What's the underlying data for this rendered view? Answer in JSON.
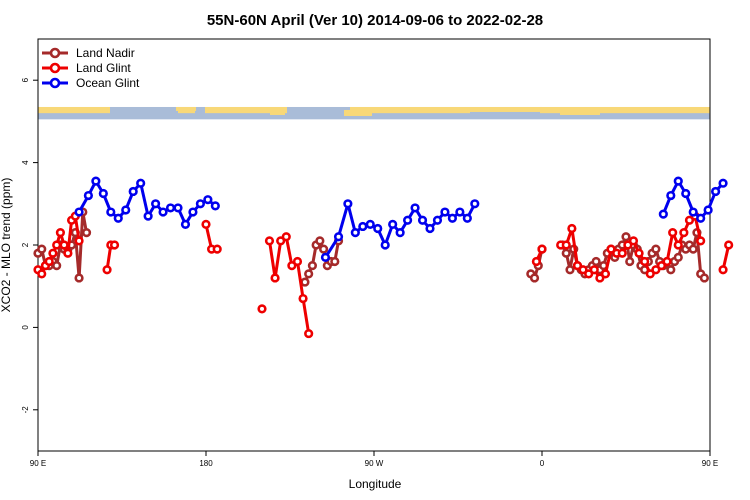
{
  "chart_data": {
    "type": "line",
    "title": "55N-60N April (Ver 10)   2014-09-06 to 2022-02-28",
    "xlabel": "Longitude",
    "ylabel": "XCO2 - MLO trend (ppm)",
    "xlim": [
      90,
      450
    ],
    "ylim": [
      -3,
      7
    ],
    "x_ticks": [
      {
        "value": 90,
        "label": "90 E"
      },
      {
        "value": 180,
        "label": "180"
      },
      {
        "value": 270,
        "label": "90 W"
      },
      {
        "value": 360,
        "label": "0"
      },
      {
        "value": 450,
        "label": "90 E"
      },
      {
        "value": 540,
        "label": "180"
      }
    ],
    "y_ticks": [
      {
        "value": -2,
        "label": "-2"
      },
      {
        "value": 0,
        "label": "0"
      },
      {
        "value": 2,
        "label": "2"
      },
      {
        "value": 4,
        "label": "4"
      },
      {
        "value": 6,
        "label": "6"
      }
    ],
    "legend": {
      "position": "top-left"
    },
    "map_strip": {
      "y_bottom": 5.05,
      "y_top": 5.35,
      "ocean_color": "#a9bcd8",
      "land_color": "#f8d878"
    },
    "series": [
      {
        "name": "Land Nadir",
        "color": "#a52a2a",
        "segments": [
          [
            [
              90,
              1.8
            ],
            [
              92,
              1.9
            ],
            [
              94,
              1.5
            ],
            [
              96,
              1.5
            ],
            [
              98,
              1.6
            ],
            [
              100,
              1.5
            ],
            [
              102,
              2.0
            ],
            [
              104,
              1.9
            ],
            [
              106,
              1.9
            ],
            [
              108,
              2.0
            ],
            [
              110,
              2.3
            ],
            [
              112,
              1.2
            ],
            [
              114,
              2.8
            ],
            [
              116,
              2.3
            ]
          ],
          [
            [
              233,
              1.1
            ],
            [
              235,
              1.3
            ],
            [
              237,
              1.5
            ],
            [
              239,
              2.0
            ],
            [
              241,
              2.1
            ],
            [
              243,
              1.9
            ],
            [
              245,
              1.5
            ],
            [
              247,
              1.6
            ],
            [
              249,
              1.6
            ],
            [
              251,
              2.1
            ]
          ],
          [
            [
              354,
              1.3
            ],
            [
              356,
              1.2
            ],
            [
              358,
              1.5
            ],
            [
              360,
              1.9
            ]
          ],
          [
            [
              371,
              2.0
            ],
            [
              373,
              1.8
            ],
            [
              375,
              1.4
            ],
            [
              377,
              1.9
            ],
            [
              379,
              1.5
            ],
            [
              381,
              1.4
            ],
            [
              383,
              1.3
            ],
            [
              385,
              1.4
            ],
            [
              387,
              1.5
            ],
            [
              389,
              1.6
            ],
            [
              391,
              1.4
            ],
            [
              393,
              1.5
            ],
            [
              395,
              1.8
            ],
            [
              397,
              1.9
            ],
            [
              399,
              1.7
            ],
            [
              401,
              1.9
            ],
            [
              403,
              2.0
            ],
            [
              405,
              2.2
            ],
            [
              407,
              1.6
            ],
            [
              409,
              2.0
            ],
            [
              411,
              1.9
            ],
            [
              413,
              1.5
            ],
            [
              415,
              1.4
            ],
            [
              417,
              1.6
            ],
            [
              419,
              1.8
            ],
            [
              421,
              1.9
            ],
            [
              423,
              1.6
            ],
            [
              425,
              1.5
            ],
            [
              427,
              1.6
            ],
            [
              429,
              1.4
            ],
            [
              431,
              1.6
            ],
            [
              433,
              1.7
            ],
            [
              435,
              2.0
            ],
            [
              437,
              1.9
            ],
            [
              439,
              2.0
            ],
            [
              441,
              1.9
            ],
            [
              443,
              2.3
            ],
            [
              445,
              1.3
            ],
            [
              447,
              1.2
            ]
          ]
        ]
      },
      {
        "name": "Land Glint",
        "color": "#ee0000",
        "segments": [
          [
            [
              90,
              1.4
            ],
            [
              92,
              1.3
            ],
            [
              94,
              1.5
            ],
            [
              96,
              1.6
            ],
            [
              98,
              1.8
            ],
            [
              100,
              2.0
            ],
            [
              102,
              2.3
            ],
            [
              104,
              2.0
            ],
            [
              106,
              1.8
            ],
            [
              108,
              2.6
            ],
            [
              110,
              2.7
            ],
            [
              112,
              2.1
            ]
          ],
          [
            [
              127,
              1.4
            ],
            [
              129,
              2.0
            ],
            [
              131,
              2.0
            ]
          ],
          [
            [
              180,
              2.5
            ],
            [
              183,
              1.9
            ],
            [
              186,
              1.9
            ]
          ],
          [
            [
              210,
              0.45
            ]
          ],
          [
            [
              214,
              2.1
            ],
            [
              217,
              1.2
            ],
            [
              220,
              2.1
            ],
            [
              223,
              2.2
            ],
            [
              226,
              1.5
            ],
            [
              229,
              1.6
            ],
            [
              232,
              0.7
            ],
            [
              235,
              -0.15
            ]
          ],
          [
            [
              357,
              1.6
            ],
            [
              360,
              1.9
            ]
          ],
          [
            [
              370,
              2.0
            ],
            [
              373,
              2.0
            ],
            [
              376,
              2.4
            ],
            [
              379,
              1.5
            ],
            [
              382,
              1.4
            ],
            [
              385,
              1.3
            ],
            [
              388,
              1.4
            ],
            [
              391,
              1.2
            ],
            [
              394,
              1.3
            ],
            [
              397,
              1.9
            ],
            [
              400,
              1.8
            ],
            [
              403,
              1.8
            ],
            [
              406,
              2.0
            ],
            [
              409,
              2.1
            ],
            [
              412,
              1.8
            ],
            [
              415,
              1.6
            ],
            [
              418,
              1.3
            ],
            [
              421,
              1.4
            ],
            [
              424,
              1.5
            ],
            [
              427,
              1.6
            ],
            [
              430,
              2.3
            ],
            [
              433,
              2.0
            ],
            [
              436,
              2.3
            ],
            [
              439,
              2.6
            ],
            [
              442,
              2.7
            ],
            [
              445,
              2.1
            ]
          ],
          [
            [
              457,
              1.4
            ],
            [
              460,
              2.0
            ]
          ]
        ]
      },
      {
        "name": "Ocean Glint",
        "color": "#0000ee",
        "segments": [
          [
            [
              112,
              2.8
            ],
            [
              117,
              3.2
            ],
            [
              121,
              3.55
            ],
            [
              125,
              3.25
            ],
            [
              129,
              2.8
            ],
            [
              133,
              2.65
            ],
            [
              137,
              2.85
            ],
            [
              141,
              3.3
            ],
            [
              145,
              3.5
            ],
            [
              149,
              2.7
            ],
            [
              153,
              3.0
            ],
            [
              157,
              2.8
            ],
            [
              161,
              2.9
            ],
            [
              165,
              2.9
            ],
            [
              169,
              2.5
            ],
            [
              173,
              2.8
            ],
            [
              177,
              3.0
            ],
            [
              181,
              3.1
            ],
            [
              185,
              2.95
            ]
          ],
          [
            [
              244,
              1.7
            ],
            [
              251,
              2.2
            ],
            [
              256,
              3.0
            ],
            [
              260,
              2.3
            ],
            [
              264,
              2.45
            ],
            [
              268,
              2.5
            ],
            [
              272,
              2.4
            ],
            [
              276,
              2.0
            ],
            [
              280,
              2.5
            ],
            [
              284,
              2.3
            ],
            [
              288,
              2.6
            ],
            [
              292,
              2.9
            ],
            [
              296,
              2.6
            ],
            [
              300,
              2.4
            ],
            [
              304,
              2.6
            ],
            [
              308,
              2.8
            ],
            [
              312,
              2.65
            ],
            [
              316,
              2.8
            ],
            [
              320,
              2.65
            ],
            [
              324,
              3.0
            ]
          ],
          [
            [
              425,
              2.75
            ],
            [
              429,
              3.2
            ],
            [
              433,
              3.55
            ],
            [
              437,
              3.25
            ],
            [
              441,
              2.8
            ],
            [
              445,
              2.65
            ],
            [
              449,
              2.85
            ],
            [
              453,
              3.3
            ],
            [
              457,
              3.5
            ]
          ]
        ]
      }
    ]
  }
}
